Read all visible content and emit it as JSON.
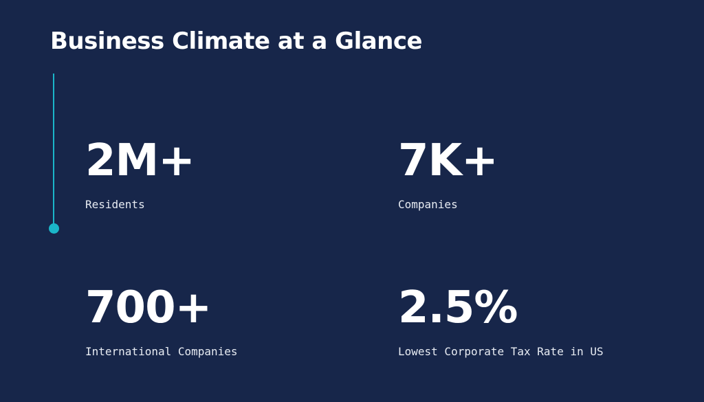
{
  "header": {
    "title": "Business Climate at a Glance"
  },
  "stats": [
    {
      "value": "2M+",
      "label": "Residents"
    },
    {
      "value": "7K+",
      "label": "Companies"
    },
    {
      "value": "700+",
      "label": "International Companies"
    },
    {
      "value": "2.5%",
      "label": "Lowest Corporate Tax Rate in US"
    }
  ]
}
